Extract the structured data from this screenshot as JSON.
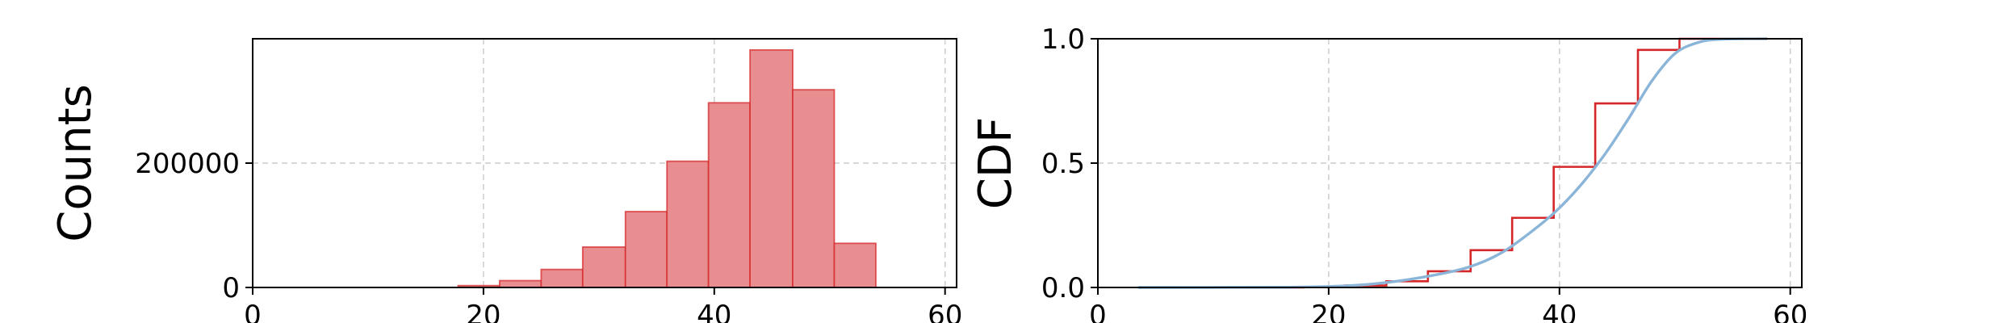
{
  "chart_data": [
    {
      "type": "bar",
      "chart": "histogram",
      "ylabel": "Counts",
      "xlabel": "",
      "xlim": [
        0,
        61
      ],
      "ylim": [
        0,
        400000
      ],
      "xticks": [
        0,
        20,
        40,
        60
      ],
      "yticks": [
        0,
        200000
      ],
      "grid": true,
      "bar_color": "#e88e90",
      "edge_color": "#d62728",
      "bins": [
        {
          "x0": 17.8,
          "x1": 21.4,
          "count": 3000
        },
        {
          "x0": 21.4,
          "x1": 25.0,
          "count": 11000
        },
        {
          "x0": 25.0,
          "x1": 28.6,
          "count": 29000
        },
        {
          "x0": 28.6,
          "x1": 32.3,
          "count": 65000
        },
        {
          "x0": 32.3,
          "x1": 35.9,
          "count": 122000
        },
        {
          "x0": 35.9,
          "x1": 39.5,
          "count": 203000
        },
        {
          "x0": 39.5,
          "x1": 43.1,
          "count": 297000
        },
        {
          "x0": 43.1,
          "x1": 46.8,
          "count": 382000
        },
        {
          "x0": 46.8,
          "x1": 50.4,
          "count": 318000
        },
        {
          "x0": 50.4,
          "x1": 54.0,
          "count": 71000
        }
      ]
    },
    {
      "type": "line",
      "ylabel": "CDF",
      "xlabel": "",
      "xlim": [
        0,
        61
      ],
      "ylim": [
        0,
        1.0
      ],
      "xticks": [
        0,
        20,
        40,
        60
      ],
      "yticks": [
        0.0,
        0.5,
        1.0
      ],
      "ytick_labels": [
        "0.0",
        "0.5",
        "1.0"
      ],
      "grid": true,
      "series": [
        {
          "kind": "step",
          "color": "#d62728",
          "x": [
            3.5,
            17.8,
            21.4,
            25.0,
            28.6,
            32.3,
            35.9,
            39.5,
            43.1,
            46.8,
            50.4,
            58.0
          ],
          "y": [
            0.0,
            0.002,
            0.008,
            0.025,
            0.065,
            0.15,
            0.28,
            0.485,
            0.74,
            0.955,
            1.0,
            1.0
          ]
        },
        {
          "kind": "smooth",
          "color": "#8bb5d8",
          "x": [
            3.5,
            15,
            20,
            24,
            28,
            32,
            35,
            38,
            40,
            42,
            44,
            46,
            48,
            50,
            52,
            54,
            58
          ],
          "y": [
            0.0,
            0.001,
            0.004,
            0.015,
            0.04,
            0.08,
            0.14,
            0.24,
            0.32,
            0.42,
            0.54,
            0.68,
            0.83,
            0.94,
            0.985,
            0.998,
            1.0
          ]
        }
      ]
    }
  ]
}
